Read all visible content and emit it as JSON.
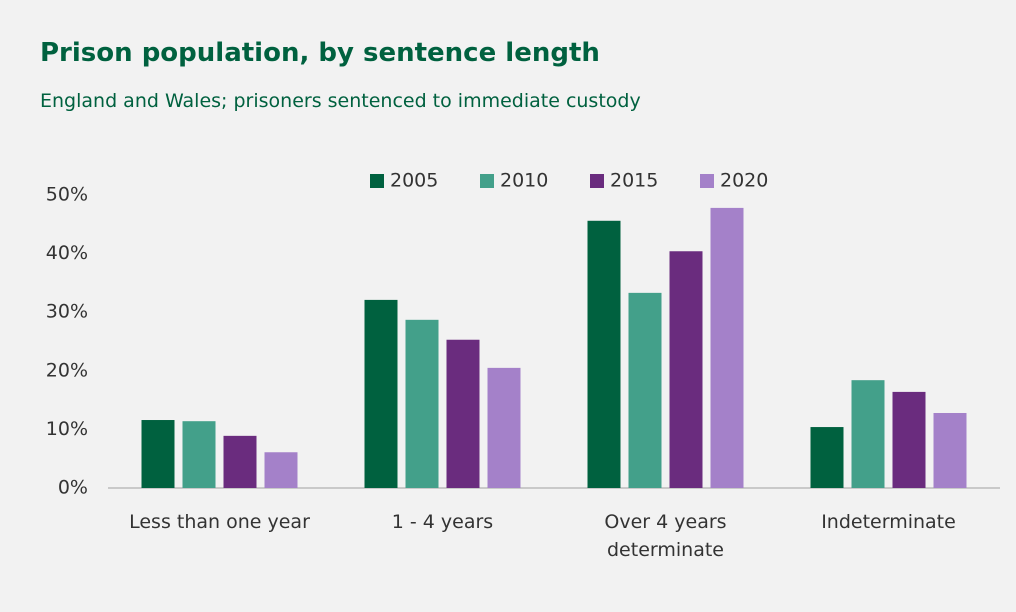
{
  "chart_data": {
    "type": "bar",
    "title": "Prison population, by sentence length",
    "subtitle": "England and Wales; prisoners sentenced to immediate custody",
    "categories": [
      "Less than one year",
      "1 - 4 years",
      "Over 4 years determinate",
      "Indeterminate"
    ],
    "series": [
      {
        "name": "2005",
        "color": "#00613f",
        "values": [
          11.6,
          32.1,
          45.6,
          10.4
        ]
      },
      {
        "name": "2010",
        "color": "#43a08a",
        "values": [
          11.4,
          28.7,
          33.3,
          18.4
        ]
      },
      {
        "name": "2015",
        "color": "#6a2c7e",
        "values": [
          8.9,
          25.3,
          40.4,
          16.4
        ]
      },
      {
        "name": "2020",
        "color": "#a481c9",
        "values": [
          6.1,
          20.5,
          47.8,
          12.8
        ]
      }
    ],
    "ylim": [
      0,
      50
    ],
    "yticks": [
      {
        "value": 0,
        "label": "0%"
      },
      {
        "value": 10,
        "label": "10%"
      },
      {
        "value": 20,
        "label": "20%"
      },
      {
        "value": 30,
        "label": "30%"
      },
      {
        "value": 40,
        "label": "40%"
      },
      {
        "value": 50,
        "label": "50%"
      }
    ],
    "legend": "top",
    "grid": false
  }
}
